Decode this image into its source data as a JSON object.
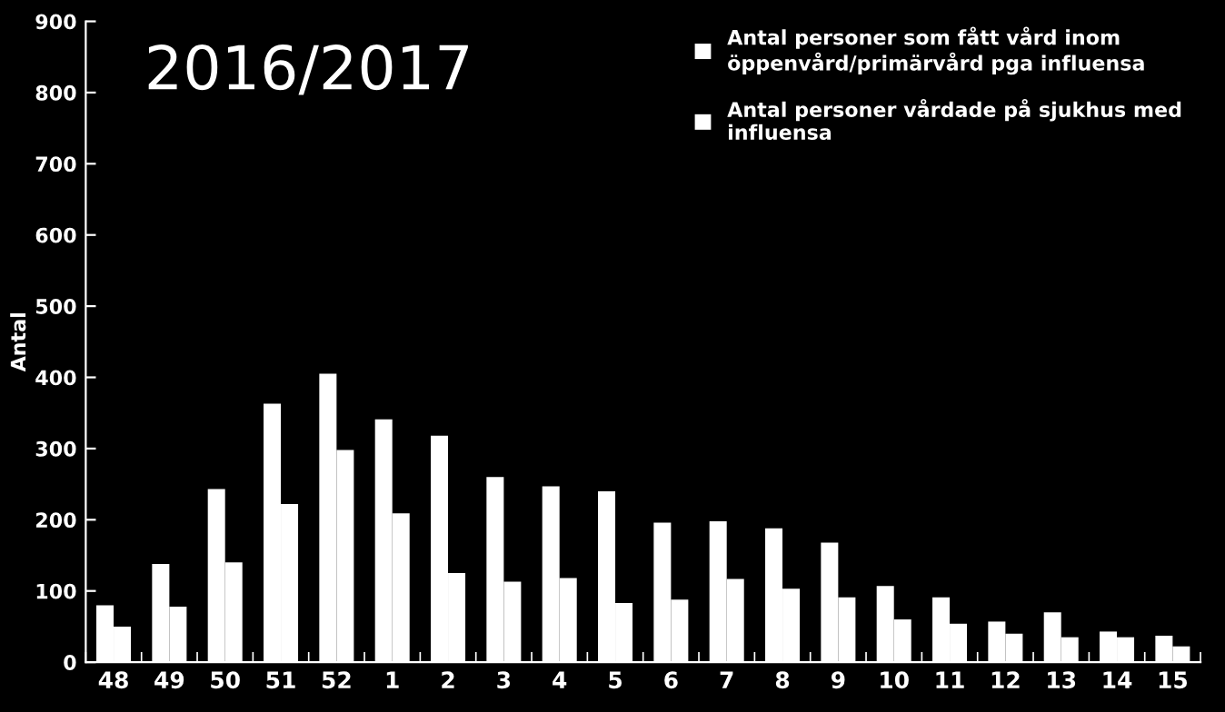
{
  "chart_data": {
    "type": "bar",
    "title": "2016/2017",
    "ylabel": "Antal",
    "categories": [
      "48",
      "49",
      "50",
      "51",
      "52",
      "1",
      "2",
      "3",
      "4",
      "5",
      "6",
      "7",
      "8",
      "9",
      "10",
      "11",
      "12",
      "13",
      "14",
      "15"
    ],
    "series": [
      {
        "name": "Antal personer som fått vård inom öppenvård/primärvård pga influensa",
        "color": "#ffffff",
        "values": [
          80,
          138,
          243,
          363,
          405,
          341,
          318,
          260,
          247,
          240,
          196,
          198,
          188,
          168,
          107,
          91,
          57,
          70,
          43,
          37
        ]
      },
      {
        "name": "Antal personer vårdade på sjukhus med influensa",
        "color": "#ffffff",
        "values": [
          50,
          78,
          140,
          222,
          298,
          209,
          125,
          113,
          118,
          83,
          88,
          117,
          103,
          91,
          60,
          54,
          40,
          35,
          35,
          22
        ]
      }
    ],
    "ylim": [
      0,
      900
    ],
    "yticks": [
      0,
      100,
      200,
      300,
      400,
      500,
      600,
      700,
      800,
      900
    ],
    "grid": false,
    "legend": "top right"
  }
}
